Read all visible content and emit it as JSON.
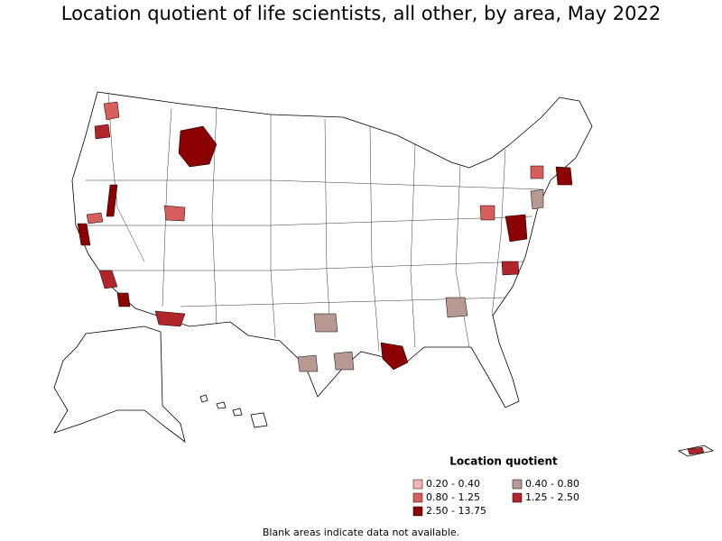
{
  "title": "Location quotient of life scientists, all other, by area, May 2022",
  "legend": {
    "title": "Location quotient",
    "items": [
      {
        "label": "0.20 - 0.40",
        "color": "#f2b6b4"
      },
      {
        "label": "0.40 - 0.80",
        "color": "#b89893"
      },
      {
        "label": "0.80 - 1.25",
        "color": "#d65f5c"
      },
      {
        "label": "1.25 - 2.50",
        "color": "#b0242a"
      },
      {
        "label": "2.50 - 13.75",
        "color": "#8b0000"
      }
    ]
  },
  "footnote": "Blank areas indicate data not available."
}
